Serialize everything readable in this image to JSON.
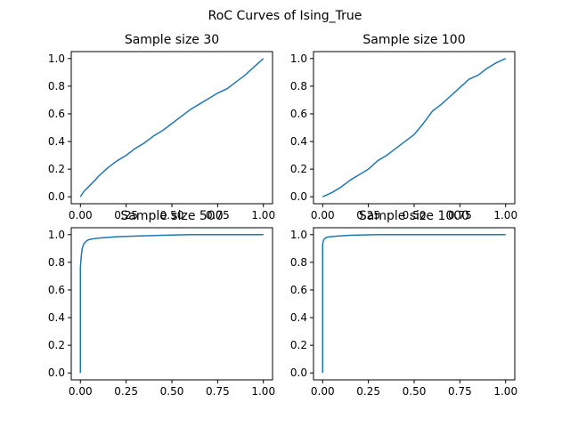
{
  "figure_title": "RoC Curves of Ising_True",
  "colors": {
    "line": "#1f77b4",
    "frame": "#000000",
    "background": "#ffffff"
  },
  "chart_data": [
    {
      "type": "line",
      "title": "Sample size 30",
      "xlim": [
        -0.05,
        1.05
      ],
      "ylim": [
        -0.05,
        1.05
      ],
      "xticks": [
        0.0,
        0.25,
        0.5,
        0.75,
        1.0
      ],
      "xtick_labels": [
        "0.00",
        "0.25",
        "0.50",
        "0.75",
        "1.00"
      ],
      "yticks": [
        0.0,
        0.2,
        0.4,
        0.6,
        0.8,
        1.0
      ],
      "ytick_labels": [
        "0.0",
        "0.2",
        "0.4",
        "0.6",
        "0.8",
        "1.0"
      ],
      "grid": false,
      "series": [
        {
          "x": [
            0.0,
            0.02,
            0.05,
            0.08,
            0.1,
            0.15,
            0.2,
            0.25,
            0.3,
            0.35,
            0.4,
            0.45,
            0.5,
            0.55,
            0.6,
            0.65,
            0.7,
            0.75,
            0.8,
            0.85,
            0.9,
            0.95,
            1.0
          ],
          "y": [
            0.0,
            0.04,
            0.08,
            0.12,
            0.15,
            0.21,
            0.26,
            0.3,
            0.35,
            0.39,
            0.44,
            0.48,
            0.53,
            0.58,
            0.63,
            0.67,
            0.71,
            0.75,
            0.78,
            0.83,
            0.88,
            0.94,
            1.0
          ]
        }
      ]
    },
    {
      "type": "line",
      "title": "Sample size 100",
      "xlim": [
        -0.05,
        1.05
      ],
      "ylim": [
        -0.05,
        1.05
      ],
      "xticks": [
        0.0,
        0.25,
        0.5,
        0.75,
        1.0
      ],
      "xtick_labels": [
        "0.00",
        "0.25",
        "0.50",
        "0.75",
        "1.00"
      ],
      "yticks": [
        0.0,
        0.2,
        0.4,
        0.6,
        0.8,
        1.0
      ],
      "ytick_labels": [
        "0.0",
        "0.2",
        "0.4",
        "0.6",
        "0.8",
        "1.0"
      ],
      "grid": false,
      "series": [
        {
          "x": [
            0.0,
            0.05,
            0.1,
            0.15,
            0.2,
            0.25,
            0.3,
            0.35,
            0.4,
            0.45,
            0.5,
            0.55,
            0.6,
            0.65,
            0.7,
            0.75,
            0.8,
            0.85,
            0.9,
            0.95,
            1.0
          ],
          "y": [
            0.0,
            0.03,
            0.07,
            0.12,
            0.16,
            0.2,
            0.26,
            0.3,
            0.35,
            0.4,
            0.45,
            0.53,
            0.62,
            0.67,
            0.73,
            0.79,
            0.85,
            0.88,
            0.93,
            0.97,
            1.0
          ]
        }
      ]
    },
    {
      "type": "line",
      "title": "Sample size 500",
      "xlim": [
        -0.05,
        1.05
      ],
      "ylim": [
        -0.05,
        1.05
      ],
      "xticks": [
        0.0,
        0.25,
        0.5,
        0.75,
        1.0
      ],
      "xtick_labels": [
        "0.00",
        "0.25",
        "0.50",
        "0.75",
        "1.00"
      ],
      "yticks": [
        0.0,
        0.2,
        0.4,
        0.6,
        0.8,
        1.0
      ],
      "ytick_labels": [
        "0.0",
        "0.2",
        "0.4",
        "0.6",
        "0.8",
        "1.0"
      ],
      "grid": false,
      "series": [
        {
          "x": [
            0.0,
            0.0,
            0.002,
            0.004,
            0.006,
            0.008,
            0.01,
            0.015,
            0.02,
            0.03,
            0.04,
            0.05,
            0.07,
            0.1,
            0.15,
            0.2,
            0.3,
            0.45,
            0.6,
            0.8,
            1.0
          ],
          "y": [
            0.0,
            0.76,
            0.8,
            0.83,
            0.86,
            0.88,
            0.9,
            0.92,
            0.935,
            0.95,
            0.96,
            0.965,
            0.97,
            0.975,
            0.98,
            0.985,
            0.99,
            0.995,
            1.0,
            1.0,
            1.0
          ]
        }
      ]
    },
    {
      "type": "line",
      "title": "Sample size 1000",
      "xlim": [
        -0.05,
        1.05
      ],
      "ylim": [
        -0.05,
        1.05
      ],
      "xticks": [
        0.0,
        0.25,
        0.5,
        0.75,
        1.0
      ],
      "xtick_labels": [
        "0.00",
        "0.25",
        "0.50",
        "0.75",
        "1.00"
      ],
      "yticks": [
        0.0,
        0.2,
        0.4,
        0.6,
        0.8,
        1.0
      ],
      "ytick_labels": [
        "0.0",
        "0.2",
        "0.4",
        "0.6",
        "0.8",
        "1.0"
      ],
      "grid": false,
      "series": [
        {
          "x": [
            0.0,
            0.0,
            0.003,
            0.005,
            0.01,
            0.02,
            0.04,
            0.08,
            0.15,
            0.3,
            0.5,
            1.0
          ],
          "y": [
            0.0,
            0.93,
            0.95,
            0.96,
            0.97,
            0.98,
            0.985,
            0.99,
            0.995,
            1.0,
            1.0,
            1.0
          ]
        }
      ]
    }
  ]
}
